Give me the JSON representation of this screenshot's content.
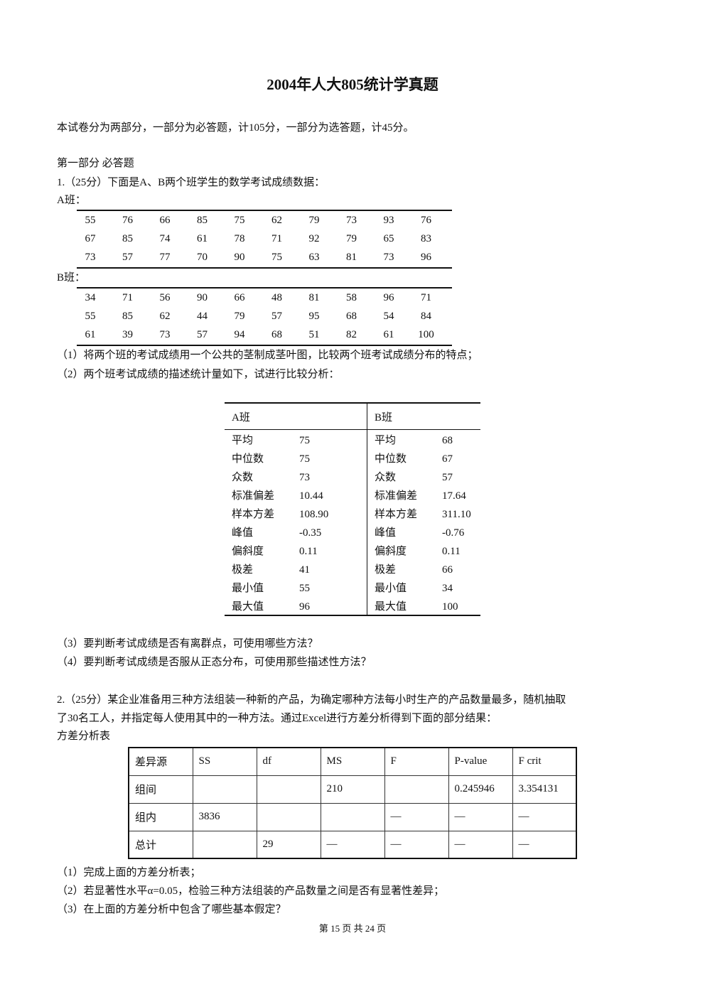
{
  "title": "2004年人大805统计学真题",
  "intro": "本试卷分为两部分，一部分为必答题，计105分，一部分为选答题，计45分。",
  "part1_heading": "第一部分  必答题",
  "q1": {
    "stem": "1.（25分）下面是A、B两个班学生的数学考试成绩数据：",
    "class_a_label": "A班：",
    "class_a_rows": [
      [
        "55",
        "76",
        "66",
        "85",
        "75",
        "62",
        "79",
        "73",
        "93",
        "76"
      ],
      [
        "67",
        "85",
        "74",
        "61",
        "78",
        "71",
        "92",
        "79",
        "65",
        "83"
      ],
      [
        "73",
        "57",
        "77",
        "70",
        "90",
        "75",
        "63",
        "81",
        "73",
        "96"
      ]
    ],
    "class_b_label": "B班：",
    "class_b_rows": [
      [
        "34",
        "71",
        "56",
        "90",
        "66",
        "48",
        "81",
        "58",
        "96",
        "71"
      ],
      [
        "55",
        "85",
        "62",
        "44",
        "79",
        "57",
        "95",
        "68",
        "54",
        "84"
      ],
      [
        "61",
        "39",
        "73",
        "57",
        "94",
        "68",
        "51",
        "82",
        "61",
        "100"
      ]
    ],
    "sub1": "（1）将两个班的考试成绩用一个公共的茎制成茎叶图，比较两个班考试成绩分布的特点；",
    "sub2": "（2）两个班考试成绩的描述统计量如下，试进行比较分析：",
    "stats_headers": [
      "A班",
      "B班"
    ],
    "stats_rows": [
      {
        "label": "平均",
        "a": "75",
        "b": "68"
      },
      {
        "label": "中位数",
        "a": "75",
        "b": "67"
      },
      {
        "label": "众数",
        "a": "73",
        "b": "57"
      },
      {
        "label": "标准偏差",
        "a": "10.44",
        "b": "17.64"
      },
      {
        "label": "样本方差",
        "a": "108.90",
        "b": "311.10"
      },
      {
        "label": "峰值",
        "a": "-0.35",
        "b": "-0.76"
      },
      {
        "label": "偏斜度",
        "a": "0.11",
        "b": "0.11"
      },
      {
        "label": "极差",
        "a": "41",
        "b": "66"
      },
      {
        "label": "最小值",
        "a": "55",
        "b": "34"
      },
      {
        "label": "最大值",
        "a": "96",
        "b": "100"
      }
    ],
    "sub3": "（3）要判断考试成绩是否有离群点，可使用哪些方法？",
    "sub4": "（4）要判断考试成绩是否服从正态分布，可使用那些描述性方法？"
  },
  "q2": {
    "stem_line1": "2.（25分）某企业准备用三种方法组装一种新的产品，为确定哪种方法每小时生产的产品数量最多，随机抽取",
    "stem_line2": "了30名工人，并指定每人使用其中的一种方法。通过Excel进行方差分析得到下面的部分结果：",
    "table_caption": "方差分析表",
    "anova_headers": [
      "差异源",
      "SS",
      "df",
      "MS",
      "F",
      "P-value",
      "F crit"
    ],
    "anova_rows": [
      [
        "组间",
        "",
        "",
        "210",
        "",
        "0.245946",
        "3.354131"
      ],
      [
        "组内",
        "3836",
        "",
        "",
        "—",
        "—",
        "—"
      ],
      [
        "总计",
        "",
        "29",
        "—",
        "—",
        "—",
        "—"
      ]
    ],
    "sub1": "（1）完成上面的方差分析表；",
    "sub2": "（2）若显著性水平α=0.05，检验三种方法组装的产品数量之间是否有显著性差异；",
    "sub3": "（3）在上面的方差分析中包含了哪些基本假定？"
  },
  "footer": "第 15 页 共 24 页"
}
